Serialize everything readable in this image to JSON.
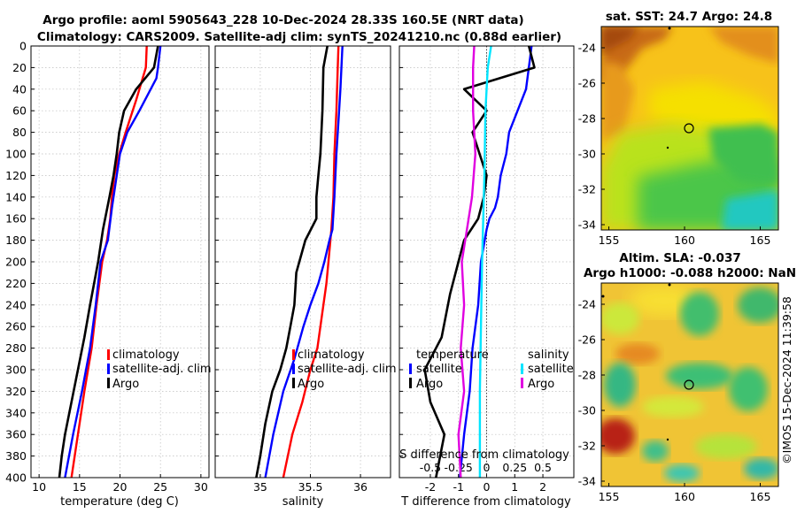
{
  "header": {
    "title_line1": "Argo profile: aoml 5905643_228 10-Dec-2024 28.33S 160.5E (NRT data)",
    "title_line2": "Climatology: CARS2009. Satellite-adj clim: synTS_20241210.nc (0.88d earlier)",
    "watermark": "©IMOS 15-Dec-2024 11:39:58"
  },
  "colors": {
    "climatology": "#ff0000",
    "satellite": "#0000ff",
    "argo": "#000000",
    "sat_salinity": "#00e5ff",
    "argo_salinity": "#e000e0"
  },
  "chart_data": [
    {
      "type": "line",
      "xlabel": "temperature (deg C)",
      "xlim": [
        9,
        31
      ],
      "xticks": [
        10,
        15,
        20,
        25,
        30
      ],
      "ylim": [
        0,
        400
      ],
      "yticks": [
        0,
        20,
        40,
        60,
        80,
        100,
        120,
        140,
        160,
        180,
        200,
        220,
        240,
        260,
        280,
        300,
        320,
        340,
        360,
        380,
        400
      ],
      "legend": [
        "climatology",
        "satellite-adj. clim",
        "Argo"
      ],
      "series": [
        {
          "name": "climatology",
          "color": "#ff0000",
          "x": [
            23.3,
            23.2,
            22.0,
            20.7,
            19.9,
            19.3,
            19.0,
            18.8,
            18.4,
            17.8,
            17.1,
            16.5,
            15.6,
            14.8,
            14.0
          ],
          "y": [
            0,
            20,
            50,
            80,
            100,
            120,
            140,
            160,
            180,
            200,
            240,
            280,
            320,
            360,
            400
          ]
        },
        {
          "name": "satellite-adj. clim",
          "color": "#0000ff",
          "x": [
            25.0,
            24.7,
            24.5,
            22.4,
            20.9,
            20.0,
            19.6,
            19.0,
            18.5,
            17.6,
            17.0,
            16.3,
            15.3,
            14.2,
            13.2
          ],
          "y": [
            0,
            20,
            30,
            60,
            80,
            100,
            120,
            150,
            180,
            200,
            240,
            280,
            320,
            360,
            400
          ]
        },
        {
          "name": "Argo",
          "color": "#000000",
          "x": [
            24.7,
            24.2,
            22.0,
            20.5,
            19.9,
            19.6,
            19.2,
            18.7,
            17.9,
            17.3,
            16.3,
            15.6,
            14.8,
            14.0,
            13.2,
            12.8,
            12.5
          ],
          "y": [
            0,
            20,
            40,
            60,
            80,
            100,
            120,
            140,
            170,
            200,
            240,
            270,
            300,
            330,
            360,
            380,
            400
          ]
        }
      ]
    },
    {
      "type": "line",
      "xlabel": "salinity",
      "xlim": [
        34.55,
        36.3
      ],
      "xticks": [
        35,
        35.5,
        36
      ],
      "ylim": [
        0,
        400
      ],
      "legend": [
        "climatology",
        "satellite-adj. clim",
        "Argo"
      ],
      "series": [
        {
          "name": "climatology",
          "color": "#ff0000",
          "x": [
            35.78,
            35.77,
            35.76,
            35.74,
            35.73,
            35.71,
            35.7,
            35.68,
            35.66,
            35.63,
            35.57,
            35.5,
            35.42,
            35.32,
            35.23
          ],
          "y": [
            0,
            30,
            60,
            100,
            140,
            170,
            180,
            200,
            220,
            240,
            280,
            300,
            330,
            360,
            400
          ]
        },
        {
          "name": "satellite-adj. clim",
          "color": "#0000ff",
          "x": [
            35.82,
            35.8,
            35.78,
            35.76,
            35.74,
            35.72,
            35.69,
            35.64,
            35.58,
            35.5,
            35.43,
            35.34,
            35.23,
            35.13,
            35.05
          ],
          "y": [
            0,
            40,
            70,
            100,
            140,
            170,
            180,
            200,
            220,
            240,
            260,
            290,
            320,
            360,
            400
          ]
        },
        {
          "name": "Argo",
          "color": "#000000",
          "x": [
            35.67,
            35.63,
            35.62,
            35.6,
            35.58,
            35.56,
            35.56,
            35.45,
            35.39,
            35.36,
            35.34,
            35.3,
            35.26,
            35.2,
            35.12,
            35.05,
            35.0,
            34.96
          ],
          "y": [
            0,
            20,
            60,
            100,
            120,
            140,
            160,
            180,
            200,
            210,
            240,
            260,
            280,
            300,
            320,
            350,
            380,
            400
          ]
        }
      ]
    },
    {
      "type": "line",
      "xlabel": "T difference from climatology",
      "xlabel_top": "S difference from climatology",
      "xlim": [
        -3.1,
        3.1
      ],
      "xticks": [
        -2,
        -1,
        0,
        1,
        2
      ],
      "xlim_top": [
        -0.775,
        0.775
      ],
      "xticks_top": [
        -0.5,
        -0.25,
        0,
        0.25,
        0.5
      ],
      "ylim": [
        0,
        400
      ],
      "legend": [
        "temperature",
        "satellite",
        "Argo",
        "salinity",
        "satellite",
        "Argo"
      ],
      "series": [
        {
          "name": "temperature satellite",
          "color": "#0000ff",
          "x": [
            1.6,
            1.5,
            1.4,
            0.8,
            0.7,
            0.5,
            0.4,
            0.3,
            0.1,
            0.0,
            -0.2,
            -0.3,
            -0.5,
            -0.6,
            -0.8,
            -0.95
          ],
          "y": [
            0,
            20,
            40,
            80,
            100,
            120,
            140,
            150,
            160,
            170,
            200,
            240,
            280,
            320,
            360,
            400
          ]
        },
        {
          "name": "temperature Argo",
          "color": "#000000",
          "x": [
            1.5,
            1.7,
            -0.8,
            0.0,
            -0.5,
            0.0,
            -0.1,
            -0.3,
            -0.8,
            -1.0,
            -1.3,
            -1.6,
            -2.2,
            -2.0,
            -1.5,
            -1.8
          ],
          "y": [
            0,
            20,
            40,
            60,
            80,
            120,
            140,
            160,
            180,
            200,
            230,
            270,
            300,
            330,
            360,
            400
          ]
        },
        {
          "name": "salinity satellite",
          "color": "#00e5ff",
          "x": [
            0.04,
            0.01,
            -0.01,
            -0.02,
            -0.03,
            -0.04,
            -0.05,
            -0.06,
            -0.06
          ],
          "y": [
            0,
            20,
            60,
            120,
            160,
            200,
            260,
            320,
            400
          ]
        },
        {
          "name": "salinity Argo",
          "color": "#e000e0",
          "x": [
            -0.11,
            -0.12,
            -0.12,
            -0.1,
            -0.13,
            -0.16,
            -0.22,
            -0.2,
            -0.23,
            -0.2,
            -0.25,
            -0.23
          ],
          "y": [
            0,
            20,
            60,
            100,
            140,
            160,
            200,
            240,
            280,
            320,
            360,
            400
          ]
        }
      ]
    },
    {
      "type": "heatmap",
      "title": "sat. SST: 24.7 Argo: 24.8",
      "xlim": [
        154.5,
        166.2
      ],
      "xticks": [
        155,
        160,
        165
      ],
      "ylim": [
        -34.3,
        -22.8
      ],
      "yticks": [
        -24,
        -26,
        -28,
        -30,
        -32,
        -34
      ],
      "argo_position": [
        160.5,
        -28.33
      ]
    },
    {
      "type": "heatmap",
      "title": "Altim. SLA: -0.037",
      "subtitle": "Argo h1000: -0.088 h2000: NaN",
      "xlim": [
        154.5,
        166.2
      ],
      "xticks": [
        155,
        160,
        165
      ],
      "ylim": [
        -34.3,
        -22.8
      ],
      "yticks": [
        -24,
        -26,
        -28,
        -30,
        -32,
        -34
      ],
      "argo_position": [
        160.5,
        -28.33
      ]
    }
  ]
}
